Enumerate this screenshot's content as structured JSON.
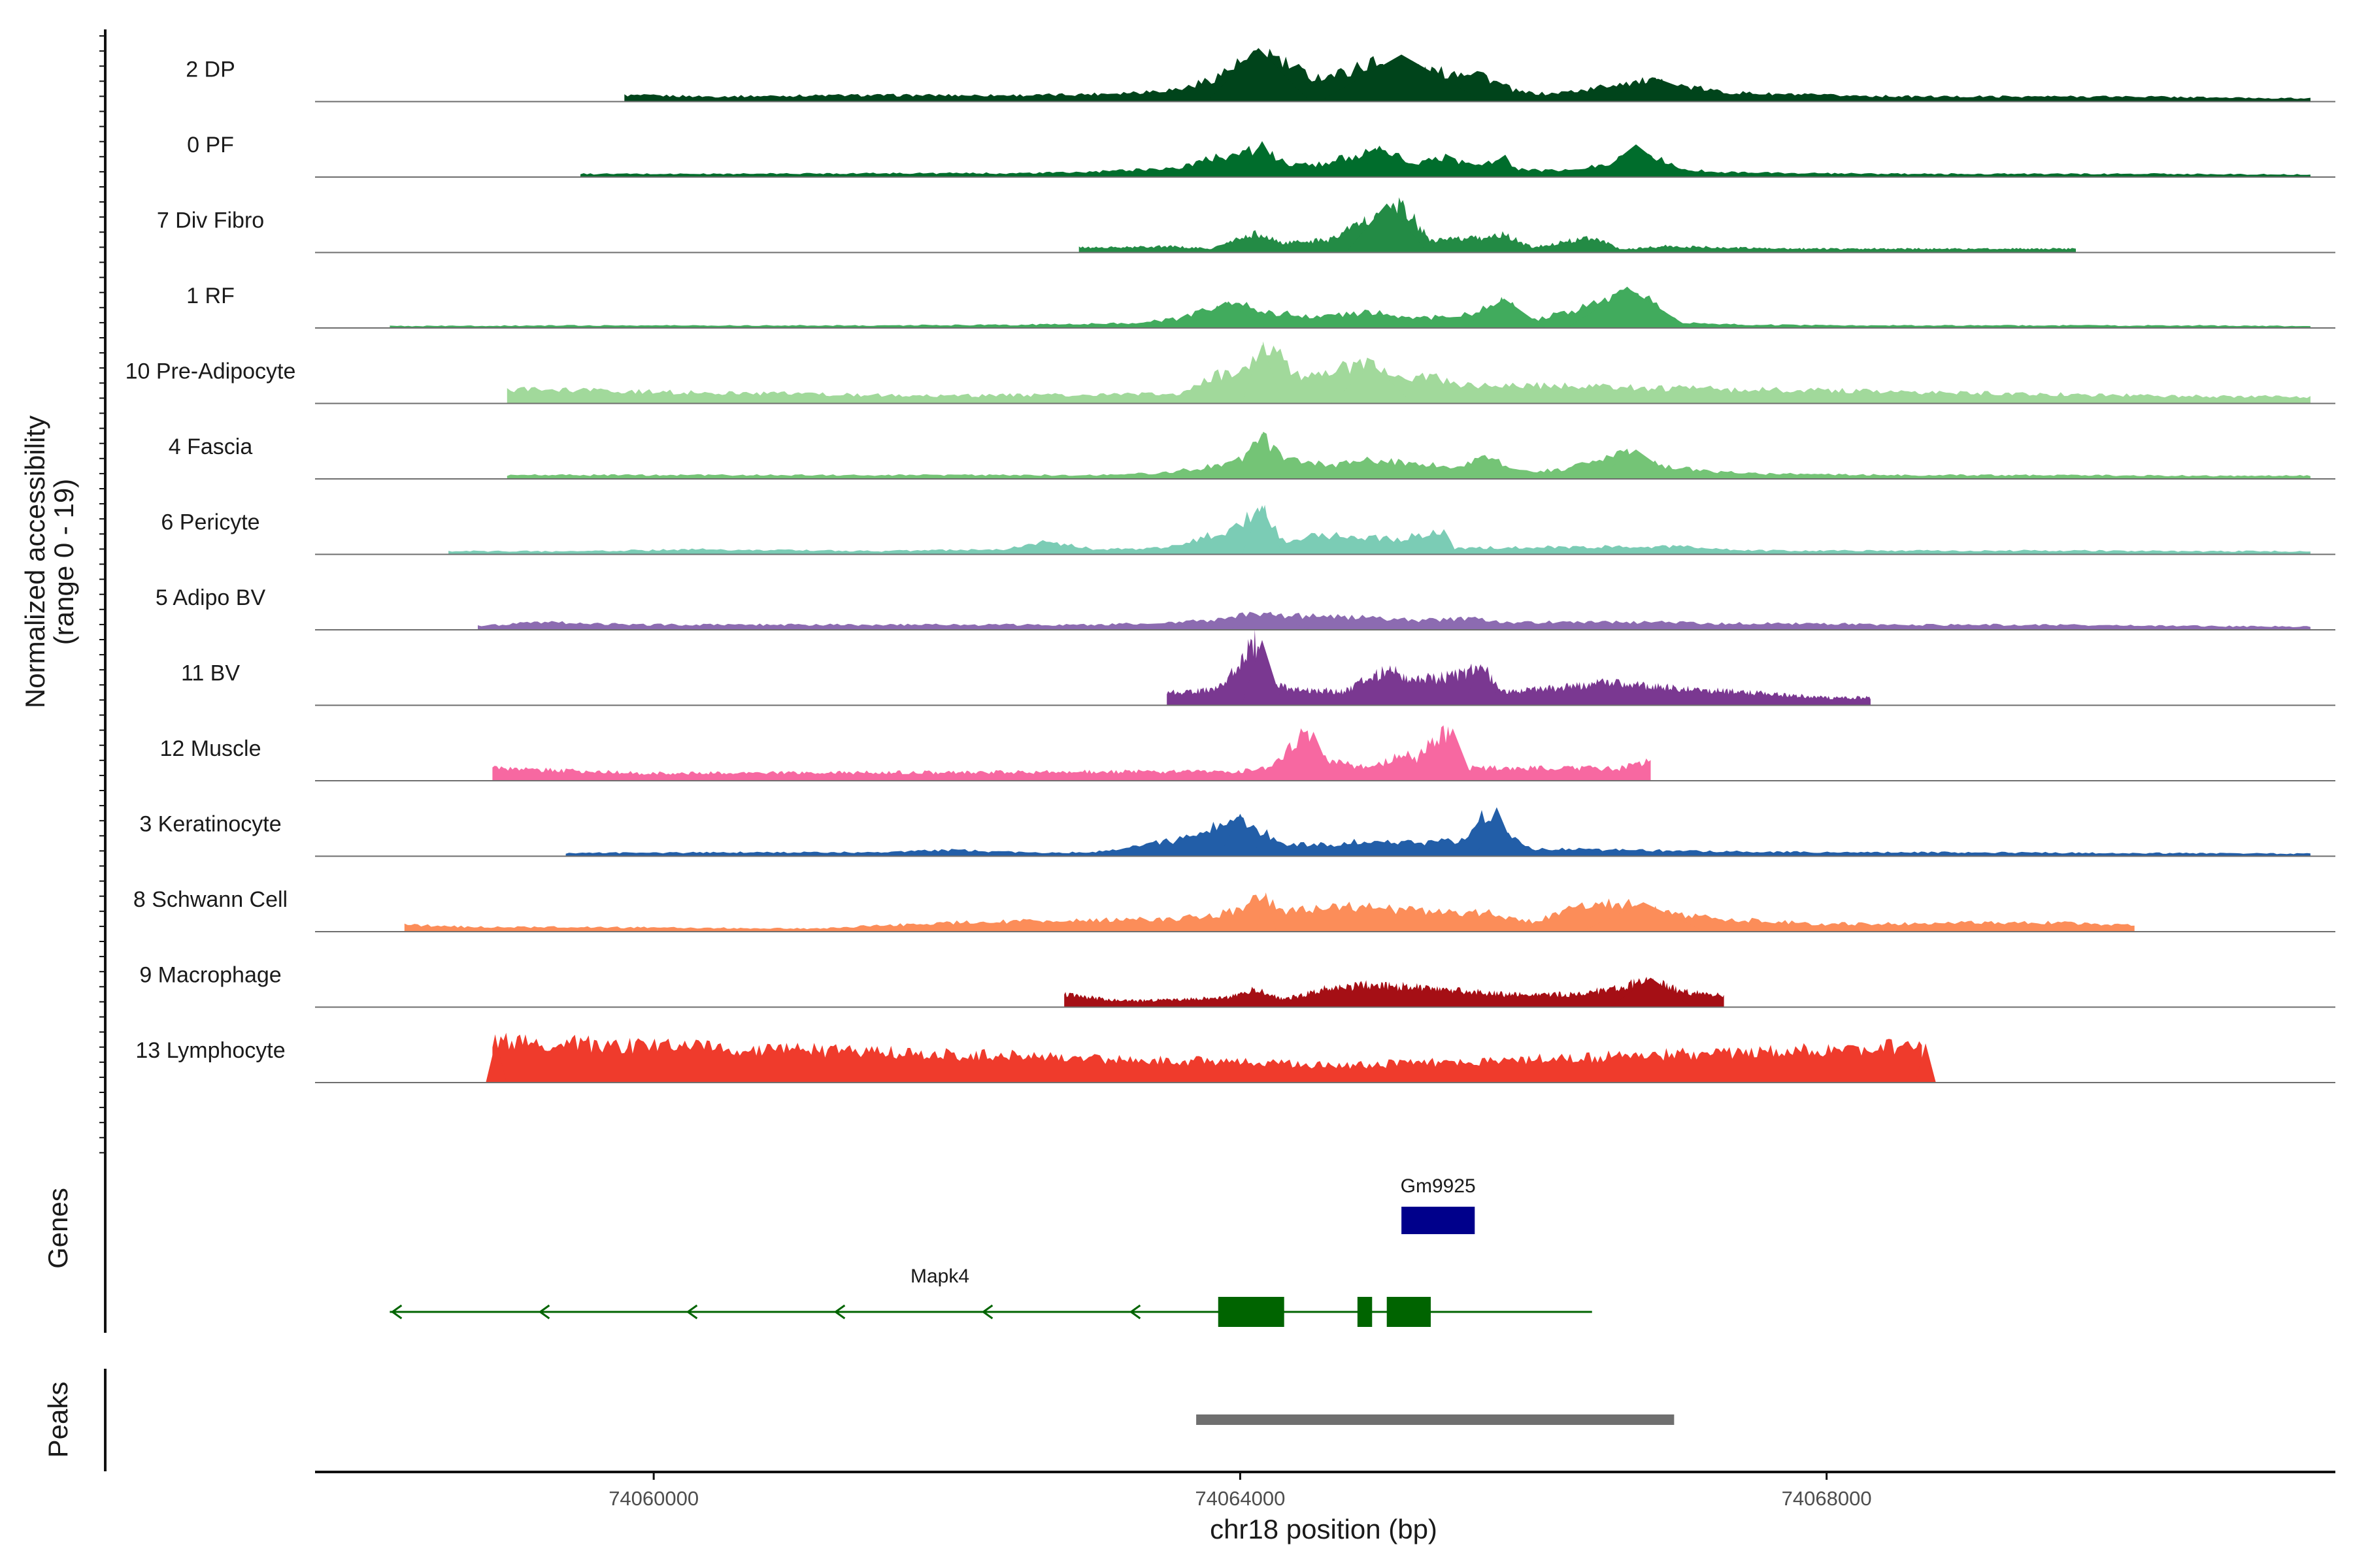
{
  "chart_data": {
    "type": "area",
    "title": "",
    "xlabel": "chr18 position (bp)",
    "ylabel": "Normalized accessibility\n(range 0 - 19)",
    "ylim": [
      0,
      19
    ],
    "xlim": [
      74057690,
      74071470
    ],
    "x_ticks": [
      74060000,
      74064000,
      74068000
    ],
    "x_tick_labels": [
      "74060000",
      "74064000",
      "74068000"
    ],
    "tracks": [
      {
        "name": "2 DP",
        "color": "#00441B",
        "peaks": [
          [
            74064000,
            74064250,
            0.82
          ],
          [
            74064900,
            74065300,
            0.72
          ],
          [
            74066700,
            74067000,
            0.35
          ]
        ],
        "x": [
          74059800,
          74060400,
          74061300,
          74062000,
          74062600,
          74063000,
          74063300,
          74063600,
          74063800,
          74064000,
          74064200,
          74064300,
          74064500,
          74064700,
          74064900,
          74065000,
          74065200,
          74065400,
          74065600,
          74065750,
          74065900,
          74066100,
          74066400,
          74066600,
          74066800,
          74067000,
          74067300,
          74067600,
          74068000,
          74068600,
          74069300,
          74070100,
          74070800,
          74071300
        ],
        "values": [
          0.1,
          0.08,
          0.1,
          0.1,
          0.1,
          0.12,
          0.15,
          0.2,
          0.35,
          0.6,
          0.75,
          0.6,
          0.38,
          0.45,
          0.62,
          0.58,
          0.5,
          0.45,
          0.5,
          0.3,
          0.15,
          0.12,
          0.2,
          0.3,
          0.32,
          0.25,
          0.15,
          0.12,
          0.1,
          0.08,
          0.08,
          0.08,
          0.06,
          0.05
        ]
      },
      {
        "name": "0 PF",
        "color": "#006D2C",
        "peaks": [
          [
            74064100,
            74064200,
            0.55
          ],
          [
            74064900,
            74065000,
            0.48
          ],
          [
            74066600,
            74066800,
            0.5
          ]
        ],
        "x": [
          74059500,
          74060500,
          74061500,
          74062500,
          74063000,
          74063300,
          74063600,
          74063800,
          74064000,
          74064150,
          74064300,
          74064500,
          74064700,
          74064900,
          74065050,
          74065200,
          74065400,
          74065600,
          74065800,
          74065900,
          74066100,
          74066300,
          74066500,
          74066650,
          74066800,
          74067000,
          74067300,
          74067800,
          74068500,
          74069300,
          74070300,
          74071300
        ],
        "values": [
          0.05,
          0.05,
          0.06,
          0.06,
          0.08,
          0.12,
          0.15,
          0.3,
          0.38,
          0.45,
          0.22,
          0.18,
          0.3,
          0.38,
          0.35,
          0.2,
          0.32,
          0.18,
          0.3,
          0.12,
          0.1,
          0.12,
          0.2,
          0.4,
          0.35,
          0.12,
          0.08,
          0.06,
          0.05,
          0.05,
          0.05,
          0.04
        ]
      },
      {
        "name": "7 Div Fibro",
        "color": "#238B45",
        "peaks": [
          [
            74064900,
            74065100,
            0.75
          ]
        ],
        "x": [
          74062900,
          74063200,
          74063500,
          74063800,
          74064100,
          74064300,
          74064600,
          74064800,
          74065000,
          74065100,
          74065300,
          74065600,
          74065800,
          74066000,
          74066400,
          74066600,
          74066900,
          74067300,
          74067700,
          74069700
        ],
        "values": [
          0.08,
          0.08,
          0.1,
          0.06,
          0.3,
          0.15,
          0.2,
          0.45,
          0.6,
          0.75,
          0.2,
          0.22,
          0.28,
          0.08,
          0.25,
          0.05,
          0.1,
          0.08,
          0.06,
          0.06
        ]
      },
      {
        "name": "1 RF",
        "color": "#41AB5D",
        "peaks": [
          [
            74063800,
            74064000,
            0.4
          ],
          [
            74065700,
            74065900,
            0.45
          ],
          [
            74066500,
            74066800,
            0.6
          ]
        ],
        "x": [
          74058200,
          74059500,
          74060500,
          74061500,
          74062500,
          74063300,
          74063600,
          74063800,
          74063950,
          74064200,
          74064500,
          74064900,
          74065200,
          74065400,
          74065600,
          74065800,
          74066000,
          74066300,
          74066500,
          74066650,
          74066800,
          74067000,
          74067500,
          74068500,
          74069500,
          74070500,
          74071300
        ],
        "values": [
          0.03,
          0.04,
          0.04,
          0.04,
          0.05,
          0.08,
          0.15,
          0.3,
          0.4,
          0.25,
          0.18,
          0.25,
          0.15,
          0.18,
          0.22,
          0.45,
          0.12,
          0.3,
          0.4,
          0.6,
          0.45,
          0.08,
          0.05,
          0.04,
          0.04,
          0.04,
          0.03
        ]
      },
      {
        "name": "10 Pre-Adipocyte",
        "color": "#A1D99B",
        "peaks": [
          [
            74064100,
            74064200,
            0.9
          ],
          [
            74064800,
            74065000,
            0.6
          ]
        ],
        "x": [
          74059000,
          74061900,
          74063600,
          74063800,
          74064000,
          74064200,
          74064400,
          74064600,
          74064800,
          74064900,
          74065100,
          74065300,
          74065500,
          74066600,
          74070300,
          74071300
        ],
        "values": [
          0.22,
          0.12,
          0.15,
          0.4,
          0.55,
          0.88,
          0.45,
          0.5,
          0.62,
          0.58,
          0.35,
          0.42,
          0.3,
          0.25,
          0.12,
          0.1
        ]
      },
      {
        "name": "4 Fascia",
        "color": "#74C476",
        "peaks": [
          [
            74064100,
            74064200,
            0.7
          ],
          [
            74066600,
            74066800,
            0.45
          ]
        ],
        "x": [
          74059000,
          74060000,
          74061000,
          74062000,
          74063000,
          74063500,
          74063800,
          74064000,
          74064150,
          74064300,
          74064600,
          74064900,
          74065200,
          74065500,
          74065700,
          74065900,
          74066200,
          74066450,
          74066650,
          74066900,
          74067200,
          74067600,
          74068500,
          74069500,
          74070500,
          74071300
        ],
        "values": [
          0.06,
          0.06,
          0.06,
          0.06,
          0.06,
          0.1,
          0.2,
          0.3,
          0.65,
          0.3,
          0.22,
          0.3,
          0.25,
          0.2,
          0.35,
          0.12,
          0.15,
          0.3,
          0.42,
          0.2,
          0.12,
          0.08,
          0.06,
          0.06,
          0.05,
          0.05
        ]
      },
      {
        "name": "6 Pericyte",
        "color": "#7BCCB5",
        "peaks": [
          [
            74064100,
            74064200,
            0.75
          ]
        ],
        "x": [
          74058600,
          74059500,
          74060400,
          74061500,
          74062400,
          74062700,
          74063000,
          74063500,
          74063800,
          74063950,
          74064150,
          74064300,
          74064550,
          74064800,
          74065100,
          74065400,
          74065450,
          74066300,
          74067000,
          74067500,
          74068500,
          74069500,
          74070500,
          74071300
        ],
        "values": [
          0.05,
          0.05,
          0.08,
          0.05,
          0.08,
          0.2,
          0.08,
          0.1,
          0.3,
          0.4,
          0.72,
          0.2,
          0.32,
          0.25,
          0.25,
          0.38,
          0.1,
          0.12,
          0.12,
          0.06,
          0.06,
          0.06,
          0.05,
          0.05
        ]
      },
      {
        "name": "5 Adipo BV",
        "color": "#8C6BB1",
        "peaks": [
          [
            74064100,
            74064300,
            0.25
          ]
        ],
        "x": [
          74058800,
          74059200,
          74060000,
          74061000,
          74062000,
          74063000,
          74063500,
          74063800,
          74064100,
          74064400,
          74064800,
          74065200,
          74065600,
          74065800,
          74066300,
          74066800,
          74067300,
          74067900,
          74068500,
          74069500,
          74070500,
          74071300
        ],
        "values": [
          0.06,
          0.12,
          0.08,
          0.08,
          0.08,
          0.08,
          0.12,
          0.15,
          0.25,
          0.22,
          0.2,
          0.15,
          0.18,
          0.12,
          0.12,
          0.12,
          0.1,
          0.1,
          0.08,
          0.08,
          0.06,
          0.05
        ]
      },
      {
        "name": "11 BV",
        "color": "#7A3891",
        "peaks": [
          [
            74064100,
            74064200,
            1.0
          ],
          [
            74065600,
            74065700,
            0.6
          ]
        ],
        "x": [
          74063500,
          74063850,
          74064100,
          74064200,
          74064400,
          74064700,
          74065000,
          74065200,
          74065450,
          74065650,
          74065800,
          74066500,
          74068000,
          74068300
        ],
        "values": [
          0.2,
          0.25,
          1.0,
          0.32,
          0.25,
          0.22,
          0.55,
          0.4,
          0.45,
          0.6,
          0.2,
          0.35,
          0.12,
          0.12
        ]
      },
      {
        "name": "12 Muscle",
        "color": "#F768A1",
        "peaks": [
          [
            74064450,
            74064550,
            0.75
          ],
          [
            74065400,
            74065500,
            0.8
          ]
        ],
        "x": [
          74058900,
          74059900,
          74060100,
          74064000,
          74064200,
          74064450,
          74064600,
          74064750,
          74064900,
          74065100,
          74065200,
          74065400,
          74065550,
          74065800,
          74066600,
          74066800
        ],
        "values": [
          0.2,
          0.12,
          0.12,
          0.15,
          0.2,
          0.75,
          0.3,
          0.25,
          0.2,
          0.45,
          0.35,
          0.78,
          0.2,
          0.2,
          0.2,
          0.3
        ]
      },
      {
        "name": "3 Keratinocyte",
        "color": "#225EA8",
        "peaks": [
          [
            74063950,
            74064050,
            0.65
          ],
          [
            74065700,
            74065800,
            0.75
          ]
        ],
        "x": [
          74059400,
          74060500,
          74061500,
          74062000,
          74062500,
          74063000,
          74063400,
          74063700,
          74063950,
          74064100,
          74064300,
          74064600,
          74064900,
          74065200,
          74065500,
          74065700,
          74065800,
          74066000,
          74066500,
          74067200,
          74068000,
          74069000,
          74070000,
          74071300
        ],
        "values": [
          0.05,
          0.06,
          0.06,
          0.1,
          0.06,
          0.06,
          0.2,
          0.3,
          0.62,
          0.45,
          0.2,
          0.18,
          0.25,
          0.2,
          0.25,
          0.72,
          0.35,
          0.12,
          0.1,
          0.08,
          0.06,
          0.06,
          0.05,
          0.04
        ]
      },
      {
        "name": "8 Schwann Cell",
        "color": "#FC8D59",
        "peaks": [
          [
            74064150,
            74064200,
            0.6
          ],
          [
            74066600,
            74066900,
            0.45
          ]
        ],
        "x": [
          74058300,
          74058600,
          74061100,
          74062100,
          74063500,
          74063800,
          74064000,
          74064150,
          74064300,
          74064600,
          74064900,
          74065300,
          74065700,
          74066000,
          74066300,
          74066600,
          74066900,
          74067300,
          74067700,
          74068000,
          74069400,
          74069800,
          74070100
        ],
        "values": [
          0.12,
          0.08,
          0.05,
          0.15,
          0.2,
          0.25,
          0.35,
          0.58,
          0.3,
          0.4,
          0.38,
          0.3,
          0.3,
          0.15,
          0.42,
          0.45,
          0.3,
          0.2,
          0.15,
          0.12,
          0.15,
          0.12,
          0.1
        ]
      },
      {
        "name": "9 Macrophage",
        "color": "#A50F15",
        "peaks": [
          [
            74066700,
            74066900,
            0.45
          ]
        ],
        "x": [
          74062800,
          74063100,
          74063300,
          74063900,
          74064100,
          74064300,
          74064600,
          74064900,
          74065300,
          74065800,
          74066300,
          74066500,
          74066800,
          74067000,
          74067300
        ],
        "values": [
          0.2,
          0.12,
          0.1,
          0.15,
          0.28,
          0.12,
          0.3,
          0.35,
          0.3,
          0.2,
          0.2,
          0.28,
          0.42,
          0.25,
          0.18
        ]
      },
      {
        "name": "13 Lymphocyte",
        "color": "#EF3B2C",
        "peaks": [
          [
            74058900,
            74058950,
            0.65
          ],
          [
            74068650,
            74068700,
            0.6
          ]
        ],
        "x": [
          74058900,
          74064600,
          74064800,
          74068650
        ],
        "values": [
          0.65,
          0.28,
          0.28,
          0.58
        ]
      }
    ],
    "genes": [
      {
        "name": "Gm9925",
        "color": "#00008B",
        "start": 74065100,
        "end": 74065600,
        "strand": "+",
        "exons": [
          [
            74065100,
            74065600
          ]
        ]
      },
      {
        "name": "Mapk4",
        "color": "#006400",
        "start": 74058200,
        "end": 74066400,
        "strand": "-",
        "exons": [
          [
            74063850,
            74064300
          ],
          [
            74064800,
            74064900
          ],
          [
            74065000,
            74065300
          ]
        ]
      }
    ],
    "peaks": [
      {
        "start": 74063700,
        "end": 74066960
      }
    ],
    "panel_labels": {
      "genes": "Genes",
      "peaks": "Peaks"
    }
  }
}
